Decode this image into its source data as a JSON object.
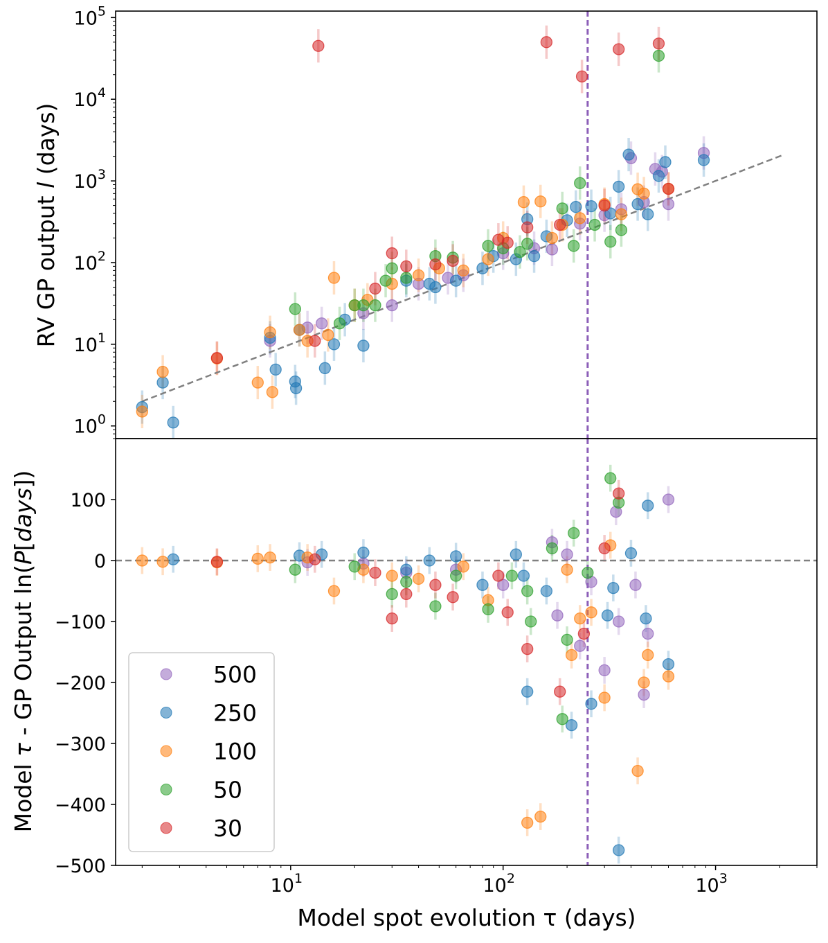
{
  "chart_data": [
    {
      "type": "scatter",
      "panel": "top",
      "xscale": "log",
      "yscale": "log",
      "xlim": [
        1.5,
        3000
      ],
      "ylim": [
        0.7,
        120000
      ],
      "ylabel": "RV GP output l (days)",
      "ylabel_parts": [
        "RV GP output ",
        "l",
        " (days)"
      ],
      "y_ticks": [
        {
          "value": 1,
          "mant": "10",
          "exp": "0"
        },
        {
          "value": 10,
          "mant": "10",
          "exp": "1"
        },
        {
          "value": 100,
          "mant": "10",
          "exp": "2"
        },
        {
          "value": 1000,
          "mant": "10",
          "exp": "3"
        },
        {
          "value": 10000,
          "mant": "10",
          "exp": "4"
        },
        {
          "value": 100000,
          "mant": "10",
          "exp": "5"
        }
      ],
      "reference_lines": [
        {
          "kind": "trend",
          "style": "dashed",
          "color": "#808080",
          "x": [
            2.0,
            2100
          ],
          "y": [
            2.0,
            2100
          ]
        },
        {
          "kind": "vertical",
          "style": "dashed",
          "color": "#8c5fb8",
          "x": 250
        }
      ],
      "series": [
        {
          "name": "500",
          "color": "#9467bd",
          "points": [
            [
              8,
              11
            ],
            [
              12,
              16
            ],
            [
              14,
              18
            ],
            [
              22,
              24
            ],
            [
              30,
              30
            ],
            [
              40,
              55
            ],
            [
              55,
              65
            ],
            [
              65,
              70
            ],
            [
              100,
              130
            ],
            [
              140,
              150
            ],
            [
              170,
              145
            ],
            [
              230,
              300
            ],
            [
              300,
              380
            ],
            [
              360,
              450
            ],
            [
              400,
              1900
            ],
            [
              460,
              550
            ],
            [
              520,
              1400
            ],
            [
              560,
              1300
            ],
            [
              600,
              520
            ],
            [
              880,
              2200
            ]
          ]
        },
        {
          "name": "250",
          "color": "#1f77b4",
          "points": [
            [
              2,
              1.7
            ],
            [
              2.5,
              3.4
            ],
            [
              2.8,
              1.1
            ],
            [
              8,
              12
            ],
            [
              8.5,
              4.9
            ],
            [
              10.5,
              3.5
            ],
            [
              10.6,
              2.9
            ],
            [
              11,
              15
            ],
            [
              14.5,
              5.1
            ],
            [
              16,
              10
            ],
            [
              18,
              20
            ],
            [
              22,
              9.6
            ],
            [
              35,
              60
            ],
            [
              45,
              55
            ],
            [
              48,
              50
            ],
            [
              60,
              60
            ],
            [
              80,
              85
            ],
            [
              90,
              120
            ],
            [
              115,
              110
            ],
            [
              130,
              340
            ],
            [
              140,
              120
            ],
            [
              160,
              210
            ],
            [
              200,
              330
            ],
            [
              220,
              480
            ],
            [
              260,
              490
            ],
            [
              320,
              400
            ],
            [
              350,
              850
            ],
            [
              390,
              2100
            ],
            [
              430,
              520
            ],
            [
              480,
              390
            ],
            [
              540,
              1150
            ],
            [
              580,
              1700
            ],
            [
              880,
              1800
            ]
          ]
        },
        {
          "name": "100",
          "color": "#ff7f0e",
          "points": [
            [
              2,
              1.5
            ],
            [
              2.5,
              4.6
            ],
            [
              4.5,
              6.7
            ],
            [
              7,
              3.4
            ],
            [
              8,
              14
            ],
            [
              8.2,
              2.6
            ],
            [
              11,
              15
            ],
            [
              12,
              11
            ],
            [
              15,
              13
            ],
            [
              16,
              65
            ],
            [
              20,
              30
            ],
            [
              23,
              35
            ],
            [
              30,
              55
            ],
            [
              40,
              70
            ],
            [
              50,
              85
            ],
            [
              65,
              80
            ],
            [
              85,
              110
            ],
            [
              100,
              200
            ],
            [
              125,
              550
            ],
            [
              150,
              560
            ],
            [
              170,
              200
            ],
            [
              190,
              290
            ],
            [
              230,
              350
            ],
            [
              300,
              520
            ],
            [
              360,
              390
            ],
            [
              430,
              790
            ],
            [
              460,
              700
            ],
            [
              600,
              800
            ]
          ]
        },
        {
          "name": "50",
          "color": "#2ca02c",
          "points": [
            [
              10.5,
              27
            ],
            [
              17,
              18
            ],
            [
              20,
              30
            ],
            [
              22,
              30
            ],
            [
              25,
              30
            ],
            [
              28,
              60
            ],
            [
              30,
              85
            ],
            [
              35,
              65
            ],
            [
              48,
              120
            ],
            [
              58,
              115
            ],
            [
              85,
              160
            ],
            [
              100,
              150
            ],
            [
              120,
              135
            ],
            [
              130,
              170
            ],
            [
              190,
              460
            ],
            [
              215,
              160
            ],
            [
              230,
              940
            ],
            [
              270,
              290
            ],
            [
              320,
              180
            ],
            [
              360,
              250
            ],
            [
              540,
              34000
            ]
          ]
        },
        {
          "name": "30",
          "color": "#d62728",
          "points": [
            [
              4.5,
              6.8
            ],
            [
              13,
              11
            ],
            [
              13.5,
              45000
            ],
            [
              25,
              48
            ],
            [
              30,
              130
            ],
            [
              35,
              90
            ],
            [
              48,
              95
            ],
            [
              58,
              105
            ],
            [
              95,
              190
            ],
            [
              105,
              175
            ],
            [
              130,
              270
            ],
            [
              160,
              50000
            ],
            [
              185,
              290
            ],
            [
              235,
              19000
            ],
            [
              300,
              500
            ],
            [
              350,
              41000
            ],
            [
              540,
              48000
            ],
            [
              600,
              800
            ]
          ]
        }
      ]
    },
    {
      "type": "scatter",
      "panel": "bottom",
      "xscale": "log",
      "yscale": "linear",
      "xlim": [
        1.5,
        3000
      ],
      "ylim": [
        -500,
        200
      ],
      "xlabel": "Model spot evolution τ (days)",
      "ylabel": "Model τ - GP Output ln(P[days])",
      "ylabel_parts": [
        "Model ",
        "τ",
        " - GP Output ln(",
        "P",
        "[",
        "days",
        "])"
      ],
      "y_ticks": [
        {
          "value": 100,
          "label": "100"
        },
        {
          "value": 0,
          "label": "0"
        },
        {
          "value": -100,
          "label": "−100"
        },
        {
          "value": -200,
          "label": "−200"
        },
        {
          "value": -300,
          "label": "−300"
        },
        {
          "value": -400,
          "label": "−400"
        },
        {
          "value": -500,
          "label": "−500"
        }
      ],
      "x_ticks": [
        {
          "value": 10,
          "mant": "10",
          "exp": "1"
        },
        {
          "value": 100,
          "mant": "10",
          "exp": "2"
        },
        {
          "value": 1000,
          "mant": "10",
          "exp": "3"
        }
      ],
      "reference_lines": [
        {
          "kind": "horizontal",
          "style": "dashed",
          "color": "#808080",
          "y": 0
        },
        {
          "kind": "vertical",
          "style": "dashed",
          "color": "#8c5fb8",
          "x": 250
        }
      ],
      "legend": {
        "position": "lower-left",
        "entries": [
          "500",
          "250",
          "100",
          "50",
          "30"
        ]
      },
      "series": [
        {
          "name": "500",
          "color": "#9467bd",
          "points": [
            [
              12,
              -3
            ],
            [
              22,
              -5
            ],
            [
              35,
              -20
            ],
            [
              60,
              -15
            ],
            [
              100,
              -40
            ],
            [
              170,
              30
            ],
            [
              180,
              -90
            ],
            [
              200,
              10
            ],
            [
              230,
              -140
            ],
            [
              260,
              -35
            ],
            [
              300,
              -180
            ],
            [
              340,
              80
            ],
            [
              350,
              -100
            ],
            [
              420,
              -40
            ],
            [
              460,
              -220
            ],
            [
              480,
              -120
            ],
            [
              600,
              100
            ]
          ]
        },
        {
          "name": "250",
          "color": "#1f77b4",
          "points": [
            [
              2.8,
              2
            ],
            [
              11,
              8
            ],
            [
              14,
              10
            ],
            [
              22,
              13
            ],
            [
              35,
              -15
            ],
            [
              45,
              0
            ],
            [
              60,
              7
            ],
            [
              80,
              -40
            ],
            [
              115,
              10
            ],
            [
              125,
              -25
            ],
            [
              130,
              -215
            ],
            [
              160,
              -50
            ],
            [
              210,
              -270
            ],
            [
              260,
              -235
            ],
            [
              310,
              -90
            ],
            [
              330,
              -45
            ],
            [
              350,
              -475
            ],
            [
              400,
              12
            ],
            [
              470,
              -95
            ],
            [
              480,
              90
            ],
            [
              600,
              -170
            ]
          ]
        },
        {
          "name": "100",
          "color": "#ff7f0e",
          "points": [
            [
              2,
              0
            ],
            [
              2.5,
              -2
            ],
            [
              4.5,
              -3
            ],
            [
              7,
              3
            ],
            [
              8,
              5
            ],
            [
              12,
              5
            ],
            [
              16,
              -50
            ],
            [
              22,
              -15
            ],
            [
              30,
              -25
            ],
            [
              40,
              -30
            ],
            [
              65,
              -10
            ],
            [
              85,
              -65
            ],
            [
              130,
              -430
            ],
            [
              150,
              -420
            ],
            [
              200,
              -15
            ],
            [
              210,
              -155
            ],
            [
              230,
              -95
            ],
            [
              260,
              -85
            ],
            [
              300,
              -225
            ],
            [
              320,
              25
            ],
            [
              430,
              -345
            ],
            [
              460,
              -200
            ],
            [
              480,
              -155
            ],
            [
              600,
              -190
            ]
          ]
        },
        {
          "name": "50",
          "color": "#2ca02c",
          "points": [
            [
              10.5,
              -15
            ],
            [
              20,
              -10
            ],
            [
              30,
              -55
            ],
            [
              35,
              -35
            ],
            [
              48,
              -75
            ],
            [
              60,
              -25
            ],
            [
              85,
              -80
            ],
            [
              110,
              -25
            ],
            [
              130,
              -50
            ],
            [
              135,
              -100
            ],
            [
              170,
              20
            ],
            [
              190,
              -260
            ],
            [
              200,
              -130
            ],
            [
              215,
              45
            ],
            [
              250,
              -20
            ],
            [
              320,
              135
            ],
            [
              350,
              95
            ]
          ]
        },
        {
          "name": "30",
          "color": "#d62728",
          "points": [
            [
              4.5,
              -2
            ],
            [
              13,
              2
            ],
            [
              25,
              -20
            ],
            [
              30,
              -95
            ],
            [
              35,
              -55
            ],
            [
              48,
              -40
            ],
            [
              58,
              -60
            ],
            [
              95,
              -25
            ],
            [
              105,
              -85
            ],
            [
              130,
              -145
            ],
            [
              185,
              -215
            ],
            [
              240,
              -120
            ],
            [
              300,
              20
            ],
            [
              350,
              110
            ]
          ]
        }
      ]
    }
  ]
}
